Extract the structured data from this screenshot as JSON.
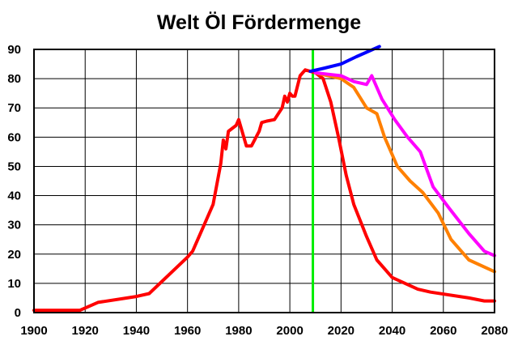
{
  "chart_data": {
    "type": "line",
    "title": "Welt Öl Fördermenge",
    "xlabel": "",
    "ylabel": "",
    "xlim": [
      1900,
      2080
    ],
    "ylim": [
      0,
      90
    ],
    "x_ticks": [
      1900,
      1920,
      1940,
      1960,
      1980,
      2000,
      2020,
      2040,
      2060,
      2080
    ],
    "y_ticks": [
      0,
      10,
      20,
      30,
      40,
      50,
      60,
      70,
      80,
      90
    ],
    "grid": true,
    "legend": "none",
    "vertical_marker": {
      "x": 2009,
      "color": "#00ee00"
    },
    "series": [
      {
        "color": "#ff0000",
        "points": [
          [
            1900,
            0.8
          ],
          [
            1918,
            0.8
          ],
          [
            1925,
            3.5
          ],
          [
            1940,
            5.5
          ],
          [
            1945,
            6.5
          ],
          [
            1960,
            19
          ],
          [
            1962,
            21
          ],
          [
            1970,
            37
          ],
          [
            1973,
            51
          ],
          [
            1974,
            59
          ],
          [
            1975,
            56
          ],
          [
            1976,
            62
          ],
          [
            1979,
            64
          ],
          [
            1980,
            66
          ],
          [
            1983,
            57
          ],
          [
            1985,
            57
          ],
          [
            1988,
            62
          ],
          [
            1989,
            65
          ],
          [
            1991,
            65.5
          ],
          [
            1994,
            66
          ],
          [
            1997,
            70
          ],
          [
            1998,
            74
          ],
          [
            1999,
            72
          ],
          [
            2000,
            75
          ],
          [
            2001,
            74
          ],
          [
            2002,
            74
          ],
          [
            2004,
            81
          ],
          [
            2006,
            83
          ],
          [
            2008,
            82.5
          ],
          [
            2010,
            82
          ],
          [
            2013,
            80
          ],
          [
            2016,
            72
          ],
          [
            2019,
            60
          ],
          [
            2022,
            47
          ],
          [
            2025,
            37
          ],
          [
            2030,
            26
          ],
          [
            2034,
            18
          ],
          [
            2040,
            12
          ],
          [
            2050,
            8
          ],
          [
            2055,
            7
          ],
          [
            2070,
            5
          ],
          [
            2076,
            4
          ],
          [
            2080,
            4
          ]
        ]
      },
      {
        "color": "#ff8000",
        "points": [
          [
            2010,
            82
          ],
          [
            2015,
            81
          ],
          [
            2020,
            80
          ],
          [
            2025,
            77
          ],
          [
            2030,
            70
          ],
          [
            2034,
            68
          ],
          [
            2037,
            60
          ],
          [
            2042,
            50
          ],
          [
            2047,
            45
          ],
          [
            2052,
            41
          ],
          [
            2058,
            34
          ],
          [
            2063,
            25
          ],
          [
            2070,
            18
          ],
          [
            2080,
            14
          ]
        ]
      },
      {
        "color": "#ff00ff",
        "points": [
          [
            2010,
            82
          ],
          [
            2015,
            81.5
          ],
          [
            2020,
            81
          ],
          [
            2025,
            79
          ],
          [
            2030,
            78
          ],
          [
            2032,
            81
          ],
          [
            2036,
            73
          ],
          [
            2041,
            66
          ],
          [
            2046,
            60
          ],
          [
            2051,
            55
          ],
          [
            2056,
            43
          ],
          [
            2062,
            36
          ],
          [
            2070,
            27
          ],
          [
            2076,
            21
          ],
          [
            2080,
            19.5
          ]
        ]
      },
      {
        "color": "#0000ff",
        "points": [
          [
            2008,
            82.5
          ],
          [
            2013,
            83.5
          ],
          [
            2020,
            85
          ],
          [
            2026,
            87.5
          ],
          [
            2035,
            91
          ]
        ]
      }
    ]
  }
}
